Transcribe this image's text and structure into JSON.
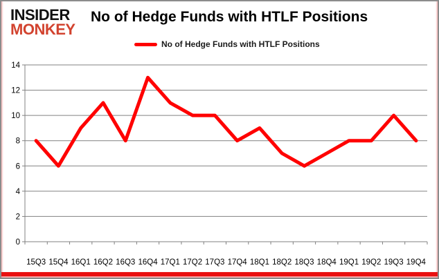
{
  "brand": {
    "name": "Insider Monkey",
    "line1": "INSIDER",
    "line2": "MONKEY"
  },
  "header": {
    "title": "No of Hedge Funds with HTLF Positions"
  },
  "legend": {
    "label": "No of Hedge Funds with HTLF Positions"
  },
  "colors": {
    "series_line": "#ff0000",
    "grid_line": "#808080",
    "axis_line": "#808080",
    "tick_text": "#000000",
    "brand_black": "#111111",
    "brand_red": "#d2432f",
    "frame_border": "#8c8c8c",
    "frame_bottom_bar": "#e90f0f",
    "frame_side_glow": "#ffb9b9",
    "background": "#ffffff"
  },
  "chart_data": {
    "type": "line",
    "title": "No of Hedge Funds with HTLF Positions",
    "categories": [
      "15Q3",
      "15Q4",
      "16Q1",
      "16Q2",
      "16Q3",
      "16Q4",
      "17Q1",
      "17Q2",
      "17Q3",
      "17Q4",
      "18Q1",
      "18Q2",
      "18Q3",
      "18Q4",
      "19Q1",
      "19Q2",
      "19Q3",
      "19Q4"
    ],
    "series": [
      {
        "name": "No of Hedge Funds with HTLF Positions",
        "color": "#ff0000",
        "values": [
          8,
          6,
          9,
          11,
          8,
          13,
          11,
          10,
          10,
          8,
          9,
          7,
          6,
          7,
          8,
          8,
          10,
          8
        ]
      }
    ],
    "xlabel": "",
    "ylabel": "",
    "ylim": [
      0,
      14
    ],
    "ytick_step": 2,
    "yticks": [
      0,
      2,
      4,
      6,
      8,
      10,
      12,
      14
    ],
    "grid": true,
    "legend_position": "top"
  }
}
